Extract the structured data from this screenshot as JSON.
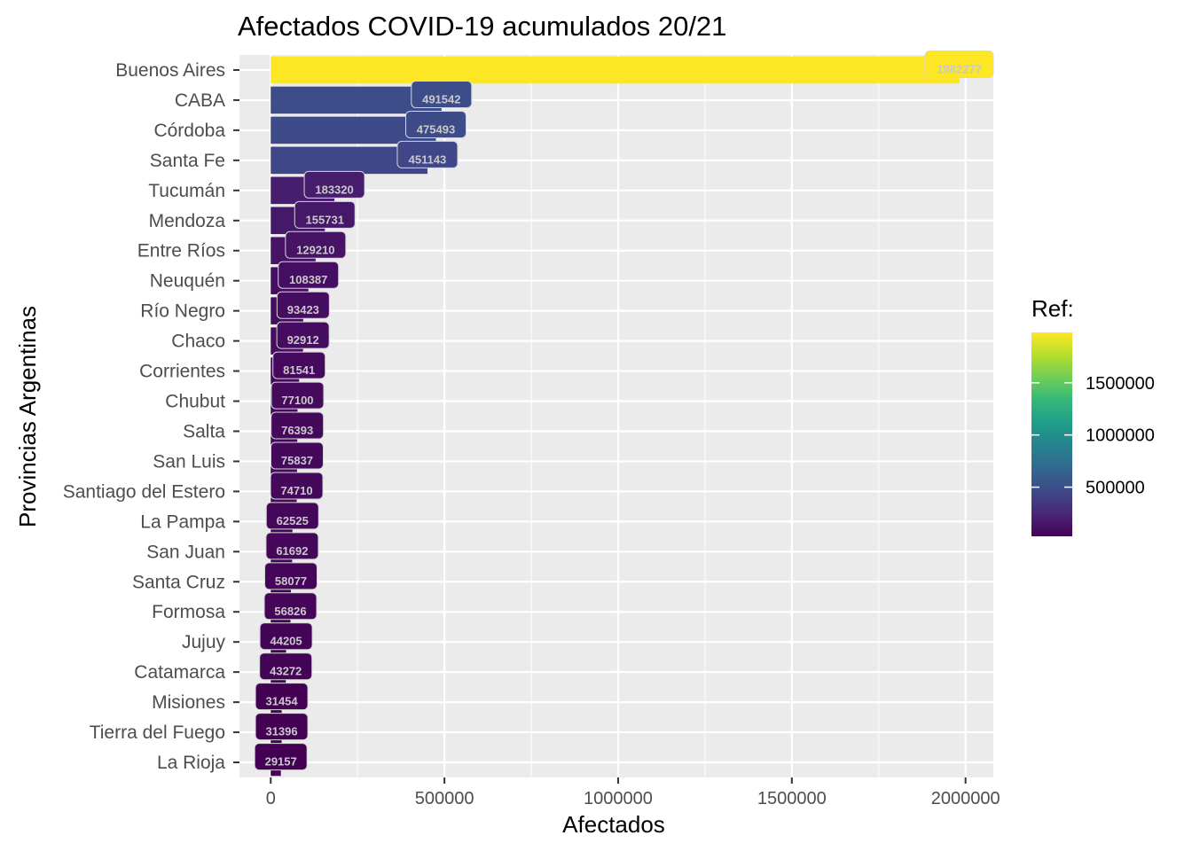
{
  "chart_data": {
    "type": "bar",
    "orientation": "horizontal",
    "title": "Afectados COVID-19 acumulados 20/21",
    "xlabel": "Afectados",
    "ylabel": "Provincias Argentinas",
    "categories": [
      "Buenos Aires",
      "CABA",
      "Córdoba",
      "Santa Fe",
      "Tucumán",
      "Mendoza",
      "Entre Ríos",
      "Neuquén",
      "Río Negro",
      "Chaco",
      "Corrientes",
      "Chubut",
      "Salta",
      "San Luis",
      "Santiago del Estero",
      "La Pampa",
      "San Juan",
      "Santa Cruz",
      "Formosa",
      "Jujuy",
      "Catamarca",
      "Misiones",
      "Tierra del Fuego",
      "La Rioja"
    ],
    "values": [
      1982277,
      491542,
      475493,
      451143,
      183320,
      155731,
      129210,
      108387,
      93423,
      92912,
      81541,
      77100,
      76393,
      75837,
      74710,
      62525,
      61692,
      58077,
      56826,
      44205,
      43272,
      31454,
      31396,
      29157
    ],
    "data_labels": [
      "1982277",
      "491542",
      "475493",
      "451143",
      "183320",
      "155731",
      "129210",
      "108387",
      "93423",
      "92912",
      "81541",
      "77100",
      "76393",
      "75837",
      "74710",
      "62525",
      "61692",
      "58077",
      "56826",
      "44205",
      "43272",
      "31454",
      "31396",
      "29157"
    ],
    "xlim": [
      -90000,
      2080000
    ],
    "xticks": [
      0,
      500000,
      1000000,
      1500000,
      2000000
    ],
    "xtick_labels": [
      "0",
      "500000",
      "1000000",
      "1500000",
      "2000000"
    ],
    "grid": true,
    "color_scale": "viridis",
    "legend": {
      "title": "Ref:",
      "position": "right",
      "range": [
        29157,
        1982277
      ],
      "ticks": [
        500000,
        1000000,
        1500000
      ],
      "tick_labels": [
        "500000",
        "1000000",
        "1500000"
      ]
    }
  }
}
